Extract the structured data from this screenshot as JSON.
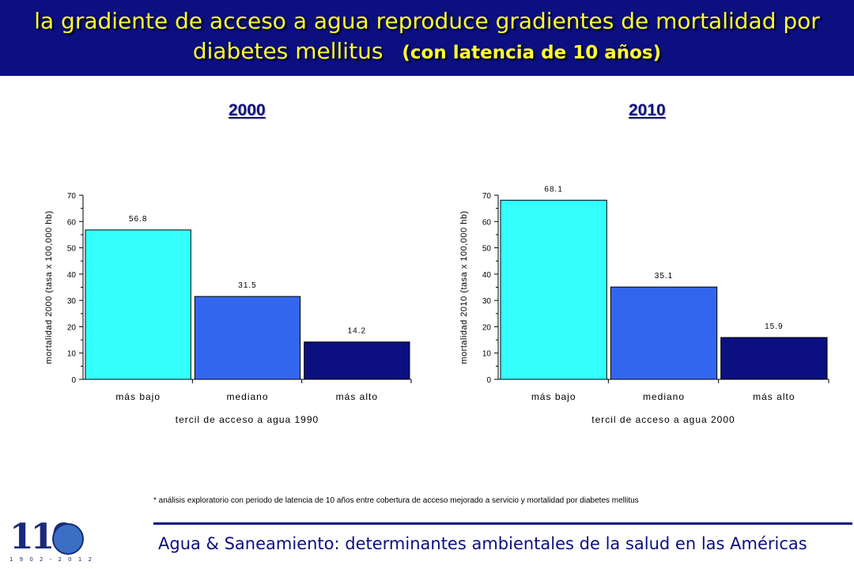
{
  "header": {
    "title": "la gradiente de acceso a agua reproduce gradientes de mortalidad por",
    "title_line2": "diabetes mellitus",
    "subtitle": "(con latencia de 10 años)"
  },
  "colors": {
    "header_bg": "#0b0f80",
    "header_text": "#ffff33",
    "bar_low": "#33ffff",
    "bar_mid": "#3366ee",
    "bar_high": "#0b0f80"
  },
  "chart_data": [
    {
      "type": "bar",
      "title": "2000",
      "categories": [
        "más bajo",
        "mediano",
        "más alto"
      ],
      "values": [
        56.8,
        31.5,
        14.2
      ],
      "data_labels": [
        "56.8",
        "31.5",
        "14.2"
      ],
      "xlabel": "tercil de acceso a agua 1990",
      "ylabel": "mortalidad 2000 (tasa x 100,000 hb)",
      "ylim": [
        0,
        70
      ],
      "yticks": [
        "0",
        "10",
        "20",
        "30",
        "40",
        "50",
        "60",
        "70"
      ],
      "grid": false
    },
    {
      "type": "bar",
      "title": "2010",
      "categories": [
        "más bajo",
        "mediano",
        "más alto"
      ],
      "values": [
        68.1,
        35.1,
        15.9
      ],
      "data_labels": [
        "68.1",
        "35.1",
        "15.9"
      ],
      "xlabel": "tercil de acceso a agua 2000",
      "ylabel": "mortalidad 2010 (tasa x 100,000 hb)",
      "ylim": [
        0,
        70
      ],
      "yticks": [
        "0",
        "10",
        "20",
        "30",
        "40",
        "50",
        "60",
        "70"
      ],
      "grid": false
    }
  ],
  "footnote": "* análisis exploratorio con periodo de latencia de 10 años entre cobertura de acceso mejorado a servicio y mortalidad por diabetes mellitus",
  "footer": {
    "text": "Agua & Saneamiento: determinantes ambientales de la salud en las Américas"
  },
  "logo": {
    "number": "110",
    "years": "1 9 0 2 - 2 0 1 2"
  }
}
